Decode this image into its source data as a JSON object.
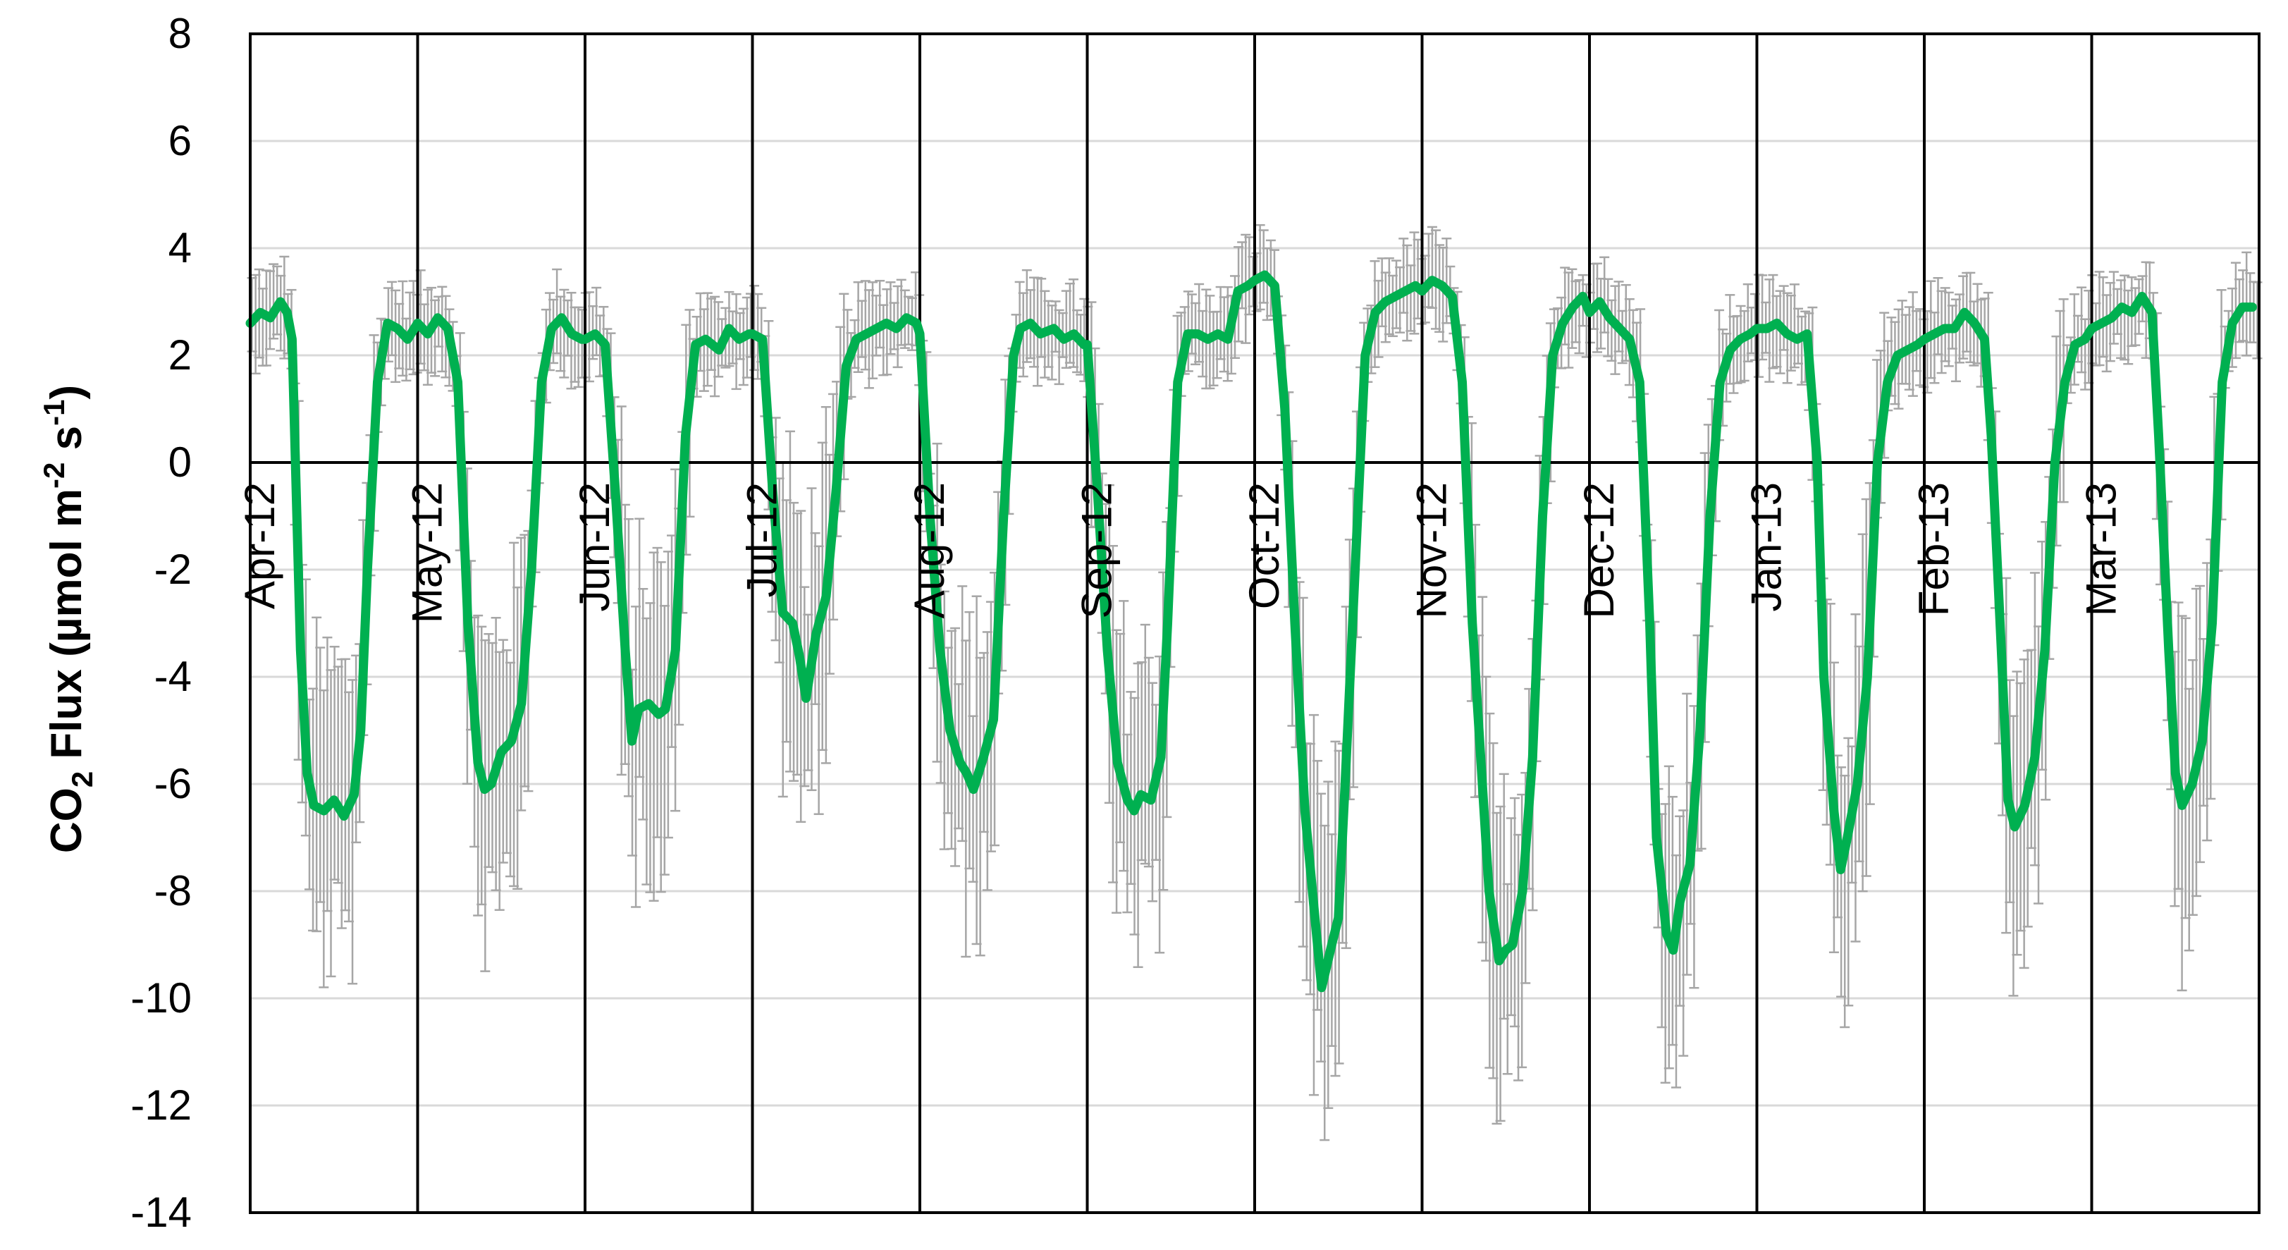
{
  "chart_data": {
    "type": "line",
    "title": "",
    "ylabel": {
      "prefix": "CO",
      "sub": "2",
      "middle": " Flux (µmol m",
      "sup1": "-2",
      "middle2": " s",
      "sup2": "-1",
      "suffix": ")"
    },
    "xlabel": "",
    "ylim": [
      -14,
      8
    ],
    "yticks": [
      8,
      6,
      4,
      2,
      0,
      -2,
      -4,
      -6,
      -8,
      -10,
      -12,
      -14
    ],
    "grid": true,
    "months": [
      "Apr-12",
      "May-12",
      "Jun-12",
      "Jul-12",
      "Aug-12",
      "Sep-12",
      "Oct-12",
      "Nov-12",
      "Dec-12",
      "Jan-13",
      "Feb-13",
      "Mar-13"
    ],
    "series": [
      {
        "color": "#00b050",
        "x": [
          0,
          0.06,
          0.12,
          0.18,
          0.22,
          0.25,
          0.3,
          0.34,
          0.38,
          0.44,
          0.5,
          0.56,
          0.62,
          0.66,
          0.7,
          0.76,
          0.82,
          0.88,
          0.94,
          1.0,
          1.06,
          1.12,
          1.18,
          1.24,
          1.3,
          1.36,
          1.4,
          1.44,
          1.5,
          1.56,
          1.62,
          1.68,
          1.74,
          1.8,
          1.86,
          1.92,
          1.98,
          2.0,
          2.06,
          2.12,
          2.18,
          2.24,
          2.28,
          2.32,
          2.38,
          2.44,
          2.48,
          2.54,
          2.6,
          2.66,
          2.72,
          2.8,
          2.86,
          2.92,
          2.98,
          3.0,
          3.06,
          3.12,
          3.18,
          3.24,
          3.28,
          3.32,
          3.38,
          3.44,
          3.5,
          3.56,
          3.62,
          3.68,
          3.74,
          3.8,
          3.86,
          3.92,
          3.98,
          4.0,
          4.06,
          4.12,
          4.18,
          4.24,
          4.28,
          4.32,
          4.38,
          4.44,
          4.5,
          4.56,
          4.6,
          4.66,
          4.72,
          4.8,
          4.86,
          4.92,
          4.98,
          5.0,
          5.06,
          5.12,
          5.18,
          5.24,
          5.28,
          5.32,
          5.38,
          5.44,
          5.48,
          5.54,
          5.6,
          5.66,
          5.72,
          5.78,
          5.84,
          5.9,
          5.96,
          6.0,
          6.06,
          6.12,
          6.18,
          6.24,
          6.3,
          6.36,
          6.4,
          6.46,
          6.5,
          6.54,
          6.6,
          6.66,
          6.72,
          6.78,
          6.84,
          6.9,
          6.96,
          7.0,
          7.06,
          7.12,
          7.18,
          7.24,
          7.3,
          7.36,
          7.4,
          7.46,
          7.5,
          7.54,
          7.6,
          7.66,
          7.72,
          7.78,
          7.84,
          7.9,
          7.96,
          8.0,
          8.06,
          8.12,
          8.18,
          8.24,
          8.3,
          8.36,
          8.4,
          8.46,
          8.5,
          8.54,
          8.6,
          8.66,
          8.72,
          8.78,
          8.84,
          8.9,
          8.96,
          9.0,
          9.06,
          9.12,
          9.18,
          9.24,
          9.3,
          9.36,
          9.4,
          9.46,
          9.5,
          9.54,
          9.6,
          9.66,
          9.72,
          9.78,
          9.84,
          9.9,
          9.96,
          10.0,
          10.06,
          10.12,
          10.18,
          10.24,
          10.3,
          10.36,
          10.4,
          10.46,
          10.5,
          10.54,
          10.6,
          10.66,
          10.72,
          10.78,
          10.84,
          10.9,
          10.96,
          11.0,
          11.06,
          11.12,
          11.18,
          11.24,
          11.3,
          11.36,
          11.4,
          11.46,
          11.5,
          11.54,
          11.6,
          11.66,
          11.72,
          11.78,
          11.84,
          11.9,
          11.96
        ],
        "y": [
          2.6,
          2.8,
          2.7,
          3.0,
          2.8,
          2.3,
          -3.5,
          -5.8,
          -6.4,
          -6.5,
          -6.3,
          -6.6,
          -6.2,
          -5.0,
          -2.0,
          1.5,
          2.6,
          2.5,
          2.3,
          2.6,
          2.4,
          2.7,
          2.5,
          1.5,
          -3.0,
          -5.6,
          -6.1,
          -6.0,
          -5.4,
          -5.2,
          -4.5,
          -2.0,
          1.5,
          2.5,
          2.7,
          2.4,
          2.3,
          2.3,
          2.4,
          2.2,
          -0.5,
          -3.5,
          -5.2,
          -4.6,
          -4.5,
          -4.7,
          -4.6,
          -3.5,
          0.5,
          2.2,
          2.3,
          2.1,
          2.5,
          2.3,
          2.4,
          2.4,
          2.3,
          -0.5,
          -2.8,
          -3.0,
          -3.6,
          -4.4,
          -3.2,
          -2.5,
          -0.5,
          1.8,
          2.3,
          2.4,
          2.5,
          2.6,
          2.5,
          2.7,
          2.6,
          2.4,
          -1.0,
          -3.5,
          -5.0,
          -5.6,
          -5.8,
          -6.1,
          -5.5,
          -4.8,
          -1.0,
          2.0,
          2.5,
          2.6,
          2.4,
          2.5,
          2.3,
          2.4,
          2.2,
          2.2,
          -0.5,
          -3.5,
          -5.6,
          -6.3,
          -6.5,
          -6.2,
          -6.3,
          -5.5,
          -3.0,
          1.5,
          2.4,
          2.4,
          2.3,
          2.4,
          2.3,
          3.2,
          3.3,
          3.4,
          3.5,
          3.3,
          1.0,
          -3.0,
          -6.5,
          -8.5,
          -9.8,
          -9.0,
          -8.5,
          -6.0,
          -2.0,
          2.0,
          2.8,
          3.0,
          3.1,
          3.2,
          3.3,
          3.2,
          3.4,
          3.3,
          3.1,
          1.5,
          -3.0,
          -6.0,
          -8.0,
          -9.3,
          -9.1,
          -9.0,
          -8.0,
          -5.5,
          -1.0,
          2.0,
          2.6,
          2.9,
          3.1,
          2.8,
          3.0,
          2.7,
          2.5,
          2.3,
          1.5,
          -3.0,
          -7.0,
          -8.8,
          -9.1,
          -8.2,
          -7.5,
          -5.0,
          -1.0,
          1.5,
          2.1,
          2.3,
          2.4,
          2.5,
          2.5,
          2.6,
          2.4,
          2.3,
          2.4,
          0.0,
          -4.0,
          -6.5,
          -7.6,
          -7.0,
          -6.0,
          -4.0,
          0.0,
          1.5,
          2.0,
          2.1,
          2.2,
          2.3,
          2.4,
          2.5,
          2.5,
          2.8,
          2.6,
          2.3,
          0.5,
          -3.5,
          -6.3,
          -6.8,
          -6.4,
          -5.5,
          -3.5,
          0.0,
          1.5,
          2.2,
          2.3,
          2.5,
          2.6,
          2.7,
          2.9,
          2.8,
          3.1,
          2.8,
          0.5,
          -3.5,
          -5.8,
          -6.4,
          -6.0,
          -5.2,
          -3.0,
          1.5,
          2.6,
          2.9,
          2.9
        ]
      }
    ]
  }
}
